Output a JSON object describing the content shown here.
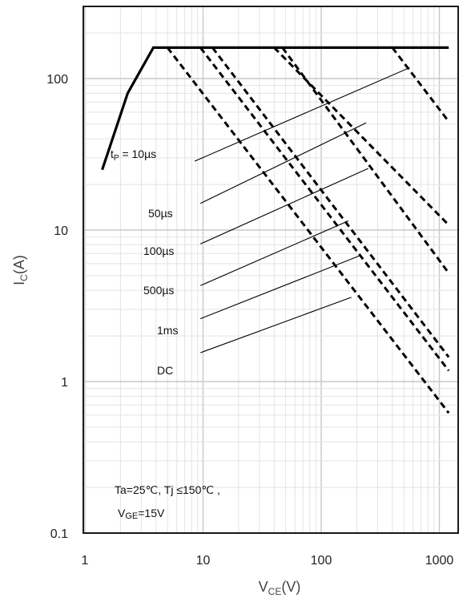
{
  "chart_data": {
    "type": "line",
    "x_scale": "log",
    "y_scale": "log",
    "xlim": [
      1,
      1200
    ],
    "ylim": [
      0.1,
      300
    ],
    "grid": true,
    "xlabel": {
      "main": "V",
      "sub": "CE",
      "unit": "(V)"
    },
    "ylabel": {
      "main": "I",
      "sub": "C",
      "unit": "(A)"
    },
    "x_ticks": [
      {
        "value": 1,
        "label": "1"
      },
      {
        "value": 10,
        "label": "10"
      },
      {
        "value": 100,
        "label": "100"
      },
      {
        "value": 1000,
        "label": "1000"
      }
    ],
    "y_ticks": [
      {
        "value": 0.1,
        "label": "0.1"
      },
      {
        "value": 1,
        "label": "1"
      },
      {
        "value": 10,
        "label": "10"
      },
      {
        "value": 100,
        "label": "100"
      }
    ],
    "boundary": {
      "style": "solid",
      "points": [
        [
          1.4,
          25
        ],
        [
          2.3,
          80
        ],
        [
          3.8,
          160
        ],
        [
          1200,
          160
        ]
      ]
    },
    "series": [
      {
        "name": "tP = 10µs",
        "style": "dashed",
        "points": [
          [
            400,
            160
          ],
          [
            1200,
            52
          ]
        ]
      },
      {
        "name": "50µs",
        "style": "dashed",
        "points": [
          [
            40,
            160
          ],
          [
            1200,
            10.8
          ]
        ]
      },
      {
        "name": "100µs",
        "style": "dashed",
        "points": [
          [
            47,
            160
          ],
          [
            1200,
            5.2
          ]
        ]
      },
      {
        "name": "500µs",
        "style": "dashed",
        "points": [
          [
            12,
            160
          ],
          [
            1200,
            1.45
          ]
        ]
      },
      {
        "name": "1ms",
        "style": "dashed",
        "points": [
          [
            9.5,
            160
          ],
          [
            1200,
            1.18
          ]
        ]
      },
      {
        "name": "DC",
        "style": "dashed",
        "points": [
          [
            5,
            160
          ],
          [
            1200,
            0.62
          ]
        ]
      }
    ],
    "leaders": [
      {
        "label_index": 0,
        "from": [
          8.5,
          28.5
        ],
        "to": [
          560,
          118
        ]
      },
      {
        "label_index": 1,
        "from": [
          9.5,
          15
        ],
        "to": [
          240,
          51
        ]
      },
      {
        "label_index": 2,
        "from": [
          9.5,
          8.1
        ],
        "to": [
          250,
          25.5
        ]
      },
      {
        "label_index": 3,
        "from": [
          9.5,
          4.3
        ],
        "to": [
          170,
          11.5
        ]
      },
      {
        "label_index": 4,
        "from": [
          9.5,
          2.6
        ],
        "to": [
          215,
          6.8
        ]
      },
      {
        "label_index": 5,
        "from": [
          9.5,
          1.55
        ],
        "to": [
          180,
          3.6
        ]
      }
    ],
    "annotations": {
      "pulse_labels": [
        {
          "prefix": "t",
          "sub": "P",
          "suffix": " = 10µs"
        },
        {
          "text": "50µs"
        },
        {
          "text": "100µs"
        },
        {
          "text": "500µs"
        },
        {
          "text": "1ms"
        },
        {
          "text": "DC"
        }
      ],
      "conditions_line1": "Ta=25℃, Tj ≤150℃ ,",
      "conditions_line2": {
        "prefix": "V",
        "sub": "GE",
        "suffix": "=15V"
      }
    }
  }
}
